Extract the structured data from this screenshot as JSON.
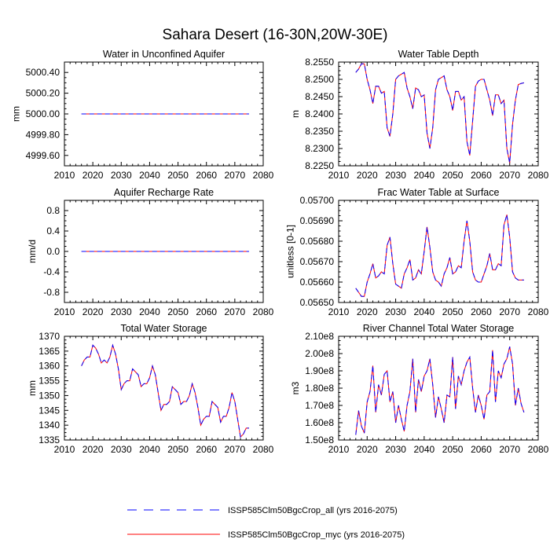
{
  "title": "Sahara Desert (16-30N,20W-30E)",
  "legend": [
    {
      "label": "ISSP585Clm50BgcCrop_all (yrs 2016-2075)",
      "color": "#0000ff",
      "dash": "dashed"
    },
    {
      "label": "ISSP585Clm50BgcCrop_myc (yrs 2016-2075)",
      "color": "#ff0000",
      "dash": "solid"
    }
  ],
  "colors": {
    "series_all": "#0000ff",
    "series_myc": "#ff0000"
  },
  "chart_data": [
    {
      "type": "line",
      "title": "Water in Unconfined Aquifer",
      "xlabel": "",
      "ylabel": "mm",
      "xlim": [
        2010,
        2080
      ],
      "ylim": [
        4999.5,
        5000.5
      ],
      "xticks": [
        2010,
        2020,
        2030,
        2040,
        2050,
        2060,
        2070,
        2080
      ],
      "yticks": [
        4999.6,
        4999.8,
        5000.0,
        5000.2,
        5000.4
      ],
      "ytick_labels": [
        "4999.60",
        "4999.80",
        "5000.00",
        "5000.20",
        "5000.40"
      ],
      "x_start": 2016,
      "series": [
        {
          "values": [
            5000,
            5000,
            5000,
            5000,
            5000,
            5000,
            5000,
            5000,
            5000,
            5000,
            5000,
            5000,
            5000,
            5000,
            5000,
            5000,
            5000,
            5000,
            5000,
            5000,
            5000,
            5000,
            5000,
            5000,
            5000,
            5000,
            5000,
            5000,
            5000,
            5000,
            5000,
            5000,
            5000,
            5000,
            5000,
            5000,
            5000,
            5000,
            5000,
            5000,
            5000,
            5000,
            5000,
            5000,
            5000,
            5000,
            5000,
            5000,
            5000,
            5000,
            5000,
            5000,
            5000,
            5000,
            5000,
            5000,
            5000,
            5000,
            5000,
            5000
          ]
        }
      ]
    },
    {
      "type": "line",
      "title": "Water Table Depth",
      "xlabel": "",
      "ylabel": "m",
      "xlim": [
        2010,
        2080
      ],
      "ylim": [
        8.225,
        8.255
      ],
      "xticks": [
        2010,
        2020,
        2030,
        2040,
        2050,
        2060,
        2070,
        2080
      ],
      "yticks": [
        8.225,
        8.23,
        8.235,
        8.24,
        8.245,
        8.25,
        8.255
      ],
      "ytick_labels": [
        "8.2250",
        "8.2300",
        "8.2350",
        "8.2400",
        "8.2450",
        "8.2500",
        "8.2550"
      ],
      "x_start": 2016,
      "series": [
        {
          "values": [
            8.252,
            8.253,
            8.2545,
            8.2545,
            8.25,
            8.247,
            8.243,
            8.248,
            8.248,
            8.246,
            8.2465,
            8.236,
            8.2335,
            8.24,
            8.25,
            8.251,
            8.2515,
            8.252,
            8.2475,
            8.245,
            8.2415,
            8.2475,
            8.247,
            8.245,
            8.2455,
            8.2345,
            8.23,
            8.236,
            8.247,
            8.25,
            8.2505,
            8.251,
            8.247,
            8.245,
            8.241,
            8.2465,
            8.2465,
            8.244,
            8.245,
            8.232,
            8.228,
            8.238,
            8.248,
            8.2495,
            8.25,
            8.25,
            8.247,
            8.244,
            8.2395,
            8.2455,
            8.2455,
            8.243,
            8.244,
            8.23,
            8.2258,
            8.237,
            8.244,
            8.2485,
            8.2488,
            8.249
          ]
        }
      ]
    },
    {
      "type": "line",
      "title": "Aquifer Recharge Rate",
      "xlabel": "",
      "ylabel": "mm/d",
      "xlim": [
        2010,
        2080
      ],
      "ylim": [
        -1.0,
        1.0
      ],
      "xticks": [
        2010,
        2020,
        2030,
        2040,
        2050,
        2060,
        2070,
        2080
      ],
      "yticks": [
        -0.8,
        -0.4,
        0.0,
        0.4,
        0.8
      ],
      "ytick_labels": [
        "-0.8",
        "-0.4",
        "0.0",
        "0.4",
        "0.8"
      ],
      "x_start": 2016,
      "series": [
        {
          "values": [
            0,
            0,
            0,
            0,
            0,
            0,
            0,
            0,
            0,
            0,
            0,
            0,
            0,
            0,
            0,
            0,
            0,
            0,
            0,
            0,
            0,
            0,
            0,
            0,
            0,
            0,
            0,
            0,
            0,
            0,
            0,
            0,
            0,
            0,
            0,
            0,
            0,
            0,
            0,
            0,
            0,
            0,
            0,
            0,
            0,
            0,
            0,
            0,
            0,
            0,
            0,
            0,
            0,
            0,
            0,
            0,
            0,
            0,
            0,
            0
          ]
        }
      ]
    },
    {
      "type": "line",
      "title": "Frac Water Table at Surface",
      "xlabel": "",
      "ylabel": "unitless [0-1]",
      "xlim": [
        2010,
        2080
      ],
      "ylim": [
        0.0565,
        0.057
      ],
      "xticks": [
        2010,
        2020,
        2030,
        2040,
        2050,
        2060,
        2070,
        2080
      ],
      "yticks": [
        0.0565,
        0.0566,
        0.0567,
        0.0568,
        0.0569,
        0.057
      ],
      "ytick_labels": [
        "0.05650",
        "0.05660",
        "0.05670",
        "0.05680",
        "0.05690",
        "0.05700"
      ],
      "x_start": 2016,
      "series": [
        {
          "values": [
            0.05657,
            0.05655,
            0.05653,
            0.05653,
            0.0566,
            0.05664,
            0.05669,
            0.05662,
            0.05663,
            0.05665,
            0.05664,
            0.05678,
            0.05682,
            0.05669,
            0.05659,
            0.05658,
            0.05657,
            0.05664,
            0.05667,
            0.05671,
            0.05661,
            0.05662,
            0.05666,
            0.05664,
            0.05675,
            0.05687,
            0.05677,
            0.05665,
            0.05661,
            0.0566,
            0.05658,
            0.05664,
            0.05667,
            0.05672,
            0.05664,
            0.05665,
            0.05668,
            0.05667,
            0.0568,
            0.0569,
            0.0568,
            0.05665,
            0.05661,
            0.0566,
            0.0566,
            0.05664,
            0.05668,
            0.05674,
            0.05666,
            0.05666,
            0.05669,
            0.05668,
            0.05688,
            0.05693,
            0.05682,
            0.05665,
            0.05662,
            0.05661,
            0.05661,
            0.05661
          ]
        }
      ]
    },
    {
      "type": "line",
      "title": "Total Water Storage",
      "xlabel": "",
      "ylabel": "mm",
      "xlim": [
        2010,
        2080
      ],
      "ylim": [
        1335,
        1370
      ],
      "xticks": [
        2010,
        2020,
        2030,
        2040,
        2050,
        2060,
        2070,
        2080
      ],
      "yticks": [
        1335,
        1340,
        1345,
        1350,
        1355,
        1360,
        1365,
        1370
      ],
      "ytick_labels": [
        "1335",
        "1340",
        "1345",
        "1350",
        "1355",
        "1360",
        "1365",
        "1370"
      ],
      "x_start": 2016,
      "series": [
        {
          "values": [
            1360,
            1362,
            1363,
            1363,
            1367,
            1366,
            1364,
            1361,
            1362,
            1361,
            1363,
            1367,
            1364,
            1359,
            1352,
            1354,
            1355,
            1355,
            1359,
            1358,
            1357,
            1353,
            1354,
            1354,
            1356,
            1360,
            1357,
            1351,
            1345,
            1347,
            1347,
            1348,
            1353,
            1352,
            1351,
            1347,
            1348,
            1348,
            1350,
            1354,
            1351,
            1346,
            1340,
            1342,
            1343,
            1343,
            1348,
            1347,
            1346,
            1341,
            1343,
            1343,
            1346,
            1351,
            1348,
            1342,
            1336,
            1337,
            1339,
            1339
          ]
        }
      ]
    },
    {
      "type": "line",
      "title": "River Channel Total Water Storage",
      "xlabel": "",
      "ylabel": "m3",
      "xlim": [
        2010,
        2080
      ],
      "ylim": [
        150000000,
        210000000
      ],
      "xticks": [
        2010,
        2020,
        2030,
        2040,
        2050,
        2060,
        2070,
        2080
      ],
      "yticks": [
        150000000,
        160000000,
        170000000,
        180000000,
        190000000,
        200000000,
        210000000
      ],
      "ytick_labels": [
        "1.50e8",
        "1.60e8",
        "1.70e8",
        "1.80e8",
        "1.90e8",
        "2.00e8",
        "2.10e8"
      ],
      "x_start": 2016,
      "series": [
        {
          "values": [
            153000000,
            167000000,
            158000000,
            154000000,
            172000000,
            178000000,
            193000000,
            166000000,
            182000000,
            176000000,
            188000000,
            190000000,
            172000000,
            178000000,
            160000000,
            170000000,
            162000000,
            155000000,
            170000000,
            178000000,
            197000000,
            166000000,
            185000000,
            178000000,
            187000000,
            190000000,
            197000000,
            182000000,
            163000000,
            175000000,
            168000000,
            160000000,
            176000000,
            175000000,
            198000000,
            168000000,
            187000000,
            182000000,
            190000000,
            195000000,
            198000000,
            180000000,
            166000000,
            176000000,
            170000000,
            162000000,
            176000000,
            178000000,
            202000000,
            172000000,
            190000000,
            186000000,
            194000000,
            197000000,
            204000000,
            194000000,
            170000000,
            180000000,
            171000000,
            166000000
          ]
        }
      ]
    }
  ]
}
